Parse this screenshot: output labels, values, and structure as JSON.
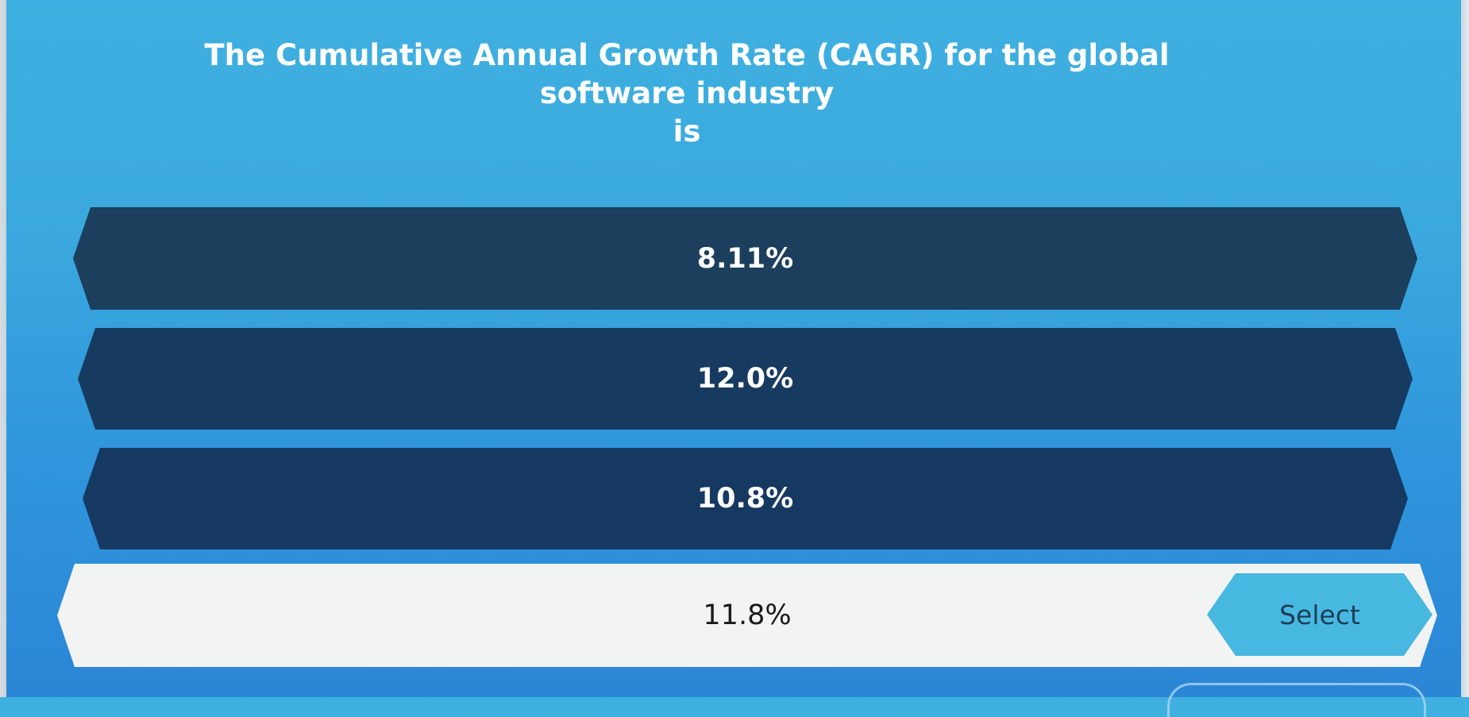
{
  "question": {
    "line1": "The Cumulative Annual Growth Rate (CAGR) for the global software industry",
    "line2": "is"
  },
  "options": [
    {
      "label": "8.11%"
    },
    {
      "label": "12.0%"
    },
    {
      "label": "10.8%"
    },
    {
      "label": "11.8%"
    }
  ],
  "selected_index": 3,
  "select_button": {
    "label": "Select"
  },
  "colors": {
    "background": "#3aa8de",
    "option_dark": "#1b3f5c",
    "option_selected": "#f2f3f3",
    "select_button": "#47b9e1"
  }
}
